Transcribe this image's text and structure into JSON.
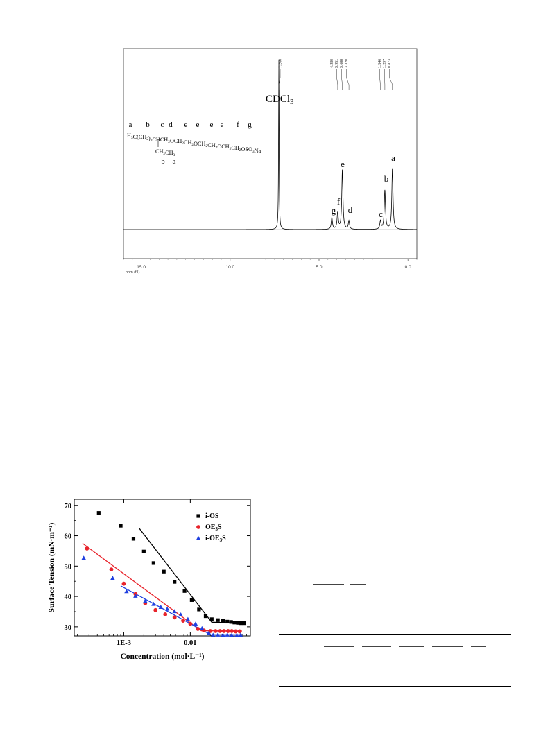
{
  "chart_data": [
    {
      "type": "line",
      "xlabel": "ppm (f1)",
      "ylabel": "",
      "title": "",
      "x_reversed": true,
      "xlim": [
        16.0,
        -0.5
      ],
      "x_ticks": [
        "15.0",
        "10.0",
        "5.0",
        "0.0"
      ],
      "x_tick_values": [
        15.0,
        10.0,
        5.0,
        0.0
      ],
      "peak_shift_labels": [
        "7.260",
        "4.280",
        "3.951",
        "3.688",
        "3.320",
        "1.546",
        "1.297",
        "0.873"
      ],
      "peaks": [
        {
          "label": "CDCl3",
          "shift": 7.26,
          "height": 1.0
        },
        {
          "label": "g",
          "shift": 4.28,
          "height": 0.07
        },
        {
          "label": "f",
          "shift": 3.951,
          "height": 0.1
        },
        {
          "label": "e",
          "shift": 3.688,
          "height": 0.35
        },
        {
          "label": "d",
          "shift": 3.32,
          "height": 0.05
        },
        {
          "label": "c",
          "shift": 1.546,
          "height": 0.05
        },
        {
          "label": "b",
          "shift": 1.297,
          "height": 0.23
        },
        {
          "label": "a",
          "shift": 0.873,
          "height": 0.36
        }
      ],
      "solvent_label": "CDCl3",
      "structure": {
        "letters_top": [
          "a",
          "b",
          "c",
          "d",
          "e",
          "e",
          "e",
          "e",
          "f",
          "g"
        ],
        "formula": "H3C(CH2)3CHCH2OCH2CH2OCH2CH2OCH2CH2OSO3Na",
        "branch": "CH2CH3",
        "letters_bottom": [
          "b",
          "a"
        ]
      }
    },
    {
      "type": "scatter",
      "xlabel": "Concentration (mol·L⁻¹)",
      "ylabel": "Surface Tension (mN·m⁻¹)",
      "x_scale": "log",
      "xlim": [
        0.00018,
        0.08
      ],
      "ylim": [
        27,
        72
      ],
      "x_ticks": [
        "1E-3",
        "0.01"
      ],
      "x_tick_values": [
        0.001,
        0.01
      ],
      "y_ticks": [
        "30",
        "40",
        "50",
        "60",
        "70"
      ],
      "y_tick_values": [
        30,
        40,
        50,
        60,
        70
      ],
      "legend_position": "top-right",
      "series": [
        {
          "name": "i-OS",
          "marker": "square",
          "color": "#000000",
          "points": [
            [
              0.00042,
              67.5
            ],
            [
              0.0009,
              63.3
            ],
            [
              0.0014,
              59.0
            ],
            [
              0.002,
              54.8
            ],
            [
              0.0028,
              51.0
            ],
            [
              0.004,
              48.2
            ],
            [
              0.0058,
              44.8
            ],
            [
              0.0082,
              41.8
            ],
            [
              0.0105,
              38.8
            ],
            [
              0.0135,
              35.7
            ],
            [
              0.017,
              33.5
            ],
            [
              0.021,
              32.5
            ],
            [
              0.026,
              32.2
            ],
            [
              0.031,
              31.9
            ],
            [
              0.036,
              31.7
            ],
            [
              0.041,
              31.6
            ],
            [
              0.046,
              31.4
            ],
            [
              0.052,
              31.3
            ],
            [
              0.058,
              31.2
            ],
            [
              0.065,
              31.2
            ]
          ],
          "fit_lines": [
            [
              [
                0.0017,
                62.5
              ],
              [
                0.021,
                31.5
              ]
            ],
            [
              [
                0.021,
                31.5
              ],
              [
                0.068,
                31.2
              ]
            ]
          ]
        },
        {
          "name": "OE3S",
          "name_display": "OE",
          "name_sub": "3",
          "name_tail": "S",
          "marker": "circle",
          "color": "#e8232b",
          "points": [
            [
              0.00028,
              55.8
            ],
            [
              0.00065,
              48.9
            ],
            [
              0.001,
              44.2
            ],
            [
              0.0015,
              40.8
            ],
            [
              0.0021,
              37.8
            ],
            [
              0.003,
              35.5
            ],
            [
              0.0042,
              34.1
            ],
            [
              0.0058,
              33.1
            ],
            [
              0.0078,
              32.0
            ],
            [
              0.01,
              31.0
            ],
            [
              0.013,
              29.3
            ],
            [
              0.016,
              28.8
            ],
            [
              0.02,
              28.6
            ],
            [
              0.024,
              28.6
            ],
            [
              0.028,
              28.6
            ],
            [
              0.032,
              28.6
            ],
            [
              0.037,
              28.6
            ],
            [
              0.042,
              28.6
            ],
            [
              0.048,
              28.5
            ],
            [
              0.055,
              28.5
            ]
          ],
          "fit_lines": [
            [
              [
                0.00024,
                57.5
              ],
              [
                0.0145,
                28.7
              ]
            ],
            [
              [
                0.0145,
                28.7
              ],
              [
                0.06,
                28.6
              ]
            ]
          ]
        },
        {
          "name": "i-OE3S",
          "name_display": "i-OE",
          "name_sub": "3",
          "name_tail": "S",
          "marker": "triangle",
          "color": "#1f3fe0",
          "points": [
            [
              0.00025,
              52.7
            ],
            [
              0.00068,
              46.1
            ],
            [
              0.0011,
              41.7
            ],
            [
              0.0015,
              40.2
            ],
            [
              0.0021,
              38.5
            ],
            [
              0.0028,
              37.5
            ],
            [
              0.0036,
              36.5
            ],
            [
              0.0045,
              35.9
            ],
            [
              0.0058,
              35.1
            ],
            [
              0.0072,
              34.0
            ],
            [
              0.0092,
              32.5
            ],
            [
              0.012,
              31.0
            ],
            [
              0.015,
              29.5
            ],
            [
              0.019,
              28.0
            ],
            [
              0.022,
              27.3
            ],
            [
              0.026,
              27.4
            ],
            [
              0.031,
              27.3
            ],
            [
              0.036,
              27.4
            ],
            [
              0.042,
              27.3
            ],
            [
              0.05,
              27.3
            ],
            [
              0.057,
              27.3
            ]
          ],
          "fit_lines": [
            [
              [
                0.0009,
                43.5
              ],
              [
                0.021,
                27.2
              ]
            ],
            [
              [
                0.021,
                27.4
              ],
              [
                0.062,
                27.4
              ]
            ]
          ]
        }
      ]
    }
  ]
}
